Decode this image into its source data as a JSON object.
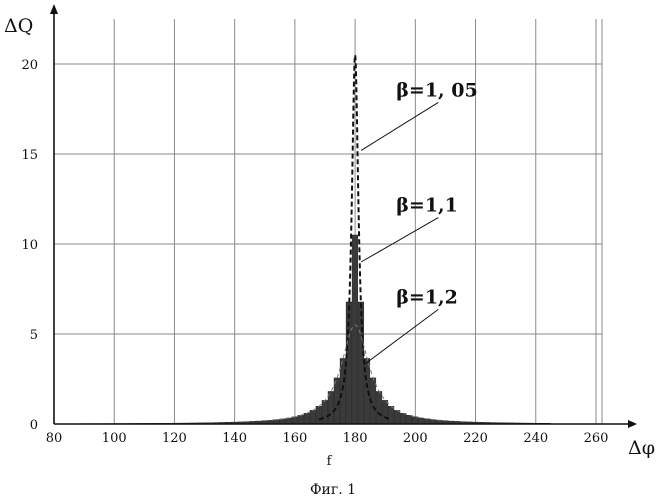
{
  "chart_data": {
    "type": "bar",
    "ylabel": "ΔQ",
    "xlabel": "Δφ",
    "xlim": [
      80,
      265
    ],
    "ylim": [
      0,
      21
    ],
    "xticks": [
      80,
      100,
      120,
      140,
      160,
      180,
      200,
      220,
      240,
      260
    ],
    "yticks": [
      0,
      5,
      10,
      15,
      20
    ],
    "grid": true,
    "center_label": "f",
    "caption": "Фиг. 1",
    "series": [
      {
        "name": "β=1, 05",
        "style": "dashed",
        "peak_x": 180,
        "peak_y": 20.5,
        "half_width": 1.35
      },
      {
        "name": "β=1,1",
        "style": "bars",
        "peak_x": 180,
        "peak_y": 10.5,
        "half_width": 2.7
      },
      {
        "name": "β=1,2",
        "style": "bars",
        "peak_x": 180,
        "peak_y": 5.5,
        "half_width": 5.6
      }
    ],
    "annotations": [
      {
        "text": "β=1, 05",
        "x": 199,
        "y": 18.2,
        "target_x": 182,
        "target_y": 15.2
      },
      {
        "text": "β=1,1",
        "x": 199,
        "y": 11.8,
        "target_x": 182,
        "target_y": 9.0
      },
      {
        "text": "β=1,2",
        "x": 199,
        "y": 6.7,
        "target_x": 183,
        "target_y": 3.3
      }
    ],
    "x_range": [
      89,
      245
    ],
    "bin_width": 2
  }
}
